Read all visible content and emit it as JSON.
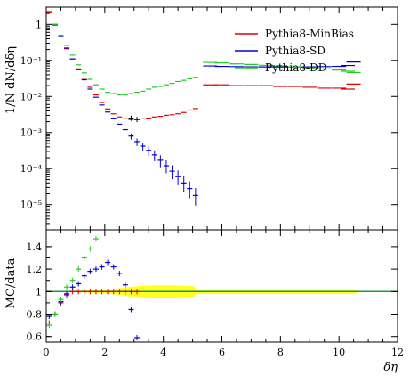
{
  "chart_data": [
    {
      "type": "scatter",
      "panel": "main",
      "xlabel": "δη",
      "ylabel": "1/N dN/dδη",
      "xlim": [
        0,
        12
      ],
      "ylim": [
        2e-06,
        3
      ],
      "yscale": "log",
      "yticks": [
        {
          "v": 1,
          "label": "1"
        },
        {
          "v": 0.1,
          "label": "10⁻¹"
        },
        {
          "v": 0.01,
          "label": "10⁻²"
        },
        {
          "v": 0.001,
          "label": "10⁻³"
        },
        {
          "v": 0.0001,
          "label": "10⁻⁴"
        },
        {
          "v": 1e-05,
          "label": "10⁻⁵"
        }
      ],
      "legend_position": "top-right",
      "data": {
        "color": "#000000",
        "points": [
          {
            "x": 2.9,
            "y": 0.0025
          },
          {
            "x": 3.1,
            "y": 0.0023
          }
        ]
      },
      "series": [
        {
          "name": "Pythia8-MinBias",
          "color": "#e00000",
          "x": [
            0.1,
            0.3,
            0.5,
            0.7,
            0.9,
            1.1,
            1.3,
            1.5,
            1.7,
            1.9,
            2.1,
            2.3,
            2.5,
            2.7,
            2.9,
            3.1,
            3.3,
            3.5,
            3.7,
            3.9,
            4.1,
            4.3,
            4.5,
            4.7,
            4.9,
            5.1,
            5.6,
            6.0,
            6.5,
            7.0,
            7.5,
            8.0,
            8.5,
            9.0,
            9.5,
            10.0,
            10.3,
            10.5
          ],
          "y": [
            2.1,
            0.95,
            0.45,
            0.21,
            0.11,
            0.058,
            0.032,
            0.018,
            0.011,
            0.0068,
            0.0045,
            0.0033,
            0.0027,
            0.0024,
            0.0023,
            0.0023,
            0.0024,
            0.0025,
            0.0027,
            0.0028,
            0.003,
            0.0031,
            0.0033,
            0.0036,
            0.0042,
            0.0046,
            0.021,
            0.021,
            0.02,
            0.02,
            0.02,
            0.019,
            0.019,
            0.018,
            0.017,
            0.017,
            0.016,
            0.022
          ]
        },
        {
          "name": "Pythia8-SD",
          "color": "#0000d0",
          "x": [
            0.1,
            0.3,
            0.5,
            0.7,
            0.9,
            1.1,
            1.3,
            1.5,
            1.7,
            1.9,
            2.1,
            2.3,
            2.5,
            2.7,
            2.9,
            3.1,
            3.3,
            3.5,
            3.7,
            3.9,
            4.1,
            4.3,
            4.5,
            4.7,
            4.9,
            5.1,
            5.6,
            6.0,
            6.5,
            7.0,
            7.5,
            8.0,
            8.5,
            9.0,
            9.5,
            10.0,
            10.3,
            10.5
          ],
          "y": [
            2.3,
            1.0,
            0.46,
            0.22,
            0.11,
            0.055,
            0.029,
            0.016,
            0.0095,
            0.0058,
            0.0037,
            0.0025,
            0.0017,
            0.0012,
            0.0008,
            0.00056,
            0.00042,
            0.00032,
            0.00024,
            0.00017,
            0.00012,
            8.5e-05,
            6e-05,
            4e-05,
            2.8e-05,
            1.8e-05,
            0.07,
            0.068,
            0.067,
            0.066,
            0.066,
            0.066,
            0.066,
            0.066,
            0.067,
            0.068,
            0.072,
            0.09
          ]
        },
        {
          "name": "Pythia8-DD",
          "color": "#22cc22",
          "x": [
            0.1,
            0.3,
            0.5,
            0.7,
            0.9,
            1.1,
            1.3,
            1.5,
            1.7,
            1.9,
            2.1,
            2.3,
            2.5,
            2.7,
            2.9,
            3.1,
            3.3,
            3.5,
            3.7,
            3.9,
            4.1,
            4.3,
            4.5,
            4.7,
            4.9,
            5.1,
            5.6,
            6.0,
            6.5,
            7.0,
            7.5,
            8.0,
            8.5,
            9.0,
            9.5,
            10.0,
            10.3,
            10.5
          ],
          "y": [
            2.3,
            1.0,
            0.5,
            0.26,
            0.14,
            0.075,
            0.045,
            0.03,
            0.021,
            0.016,
            0.013,
            0.012,
            0.011,
            0.011,
            0.012,
            0.013,
            0.014,
            0.016,
            0.018,
            0.019,
            0.021,
            0.023,
            0.026,
            0.028,
            0.031,
            0.034,
            0.088,
            0.085,
            0.08,
            0.077,
            0.073,
            0.07,
            0.066,
            0.062,
            0.058,
            0.054,
            0.05,
            0.046
          ]
        }
      ]
    },
    {
      "type": "scatter",
      "panel": "ratio",
      "xlabel": "δη",
      "ylabel": "MC/data",
      "xlim": [
        0,
        12
      ],
      "ylim": [
        0.55,
        1.55
      ],
      "xticks": [
        "0",
        "2",
        "4",
        "6",
        "8",
        "10",
        "12"
      ],
      "yticks": [
        "0.6",
        "0.8",
        "1",
        "1.2",
        "1.4"
      ],
      "uncertainty_band": {
        "color": "#ffff22",
        "x": [
          0.2,
          0.6,
          1.0,
          1.4,
          1.8,
          2.2,
          2.5,
          2.8,
          3.2,
          3.6,
          4.0,
          4.4,
          4.8,
          5.0,
          5.15,
          10.6
        ],
        "halfwidth": [
          0.003,
          0.004,
          0.006,
          0.01,
          0.015,
          0.02,
          0.03,
          0.04,
          0.05,
          0.055,
          0.055,
          0.055,
          0.05,
          0.05,
          0.02,
          0.02
        ]
      },
      "series": [
        {
          "name": "Pythia8-MinBias",
          "color": "#e00000",
          "x": [
            0.1,
            0.3,
            0.5,
            0.7,
            0.9,
            1.1,
            1.3,
            1.5,
            1.7,
            1.9,
            2.1,
            2.3,
            2.5,
            2.7,
            2.9,
            3.1
          ],
          "y": [
            0.72,
            0.8,
            0.9,
            0.97,
            1.0,
            1.0,
            1.0,
            1.0,
            1.0,
            1.0,
            1.0,
            1.0,
            1.0,
            1.0,
            1.0,
            1.0
          ]
        },
        {
          "name": "Pythia8-SD",
          "color": "#0000d0",
          "x": [
            0.1,
            0.3,
            0.5,
            0.7,
            0.9,
            1.1,
            1.3,
            1.5,
            1.7,
            1.9,
            2.1,
            2.3,
            2.5,
            2.7,
            2.9,
            3.1
          ],
          "y": [
            0.78,
            0.8,
            0.91,
            0.98,
            1.04,
            1.07,
            1.14,
            1.18,
            1.2,
            1.22,
            1.26,
            1.22,
            1.16,
            1.06,
            0.84,
            0.59
          ]
        },
        {
          "name": "Pythia8-DD",
          "color": "#22cc22",
          "x": [
            0.1,
            0.3,
            0.5,
            0.7,
            0.9,
            1.1,
            1.3,
            1.5,
            1.7
          ],
          "y": [
            0.7,
            0.8,
            0.93,
            1.04,
            1.1,
            1.2,
            1.3,
            1.38,
            1.47
          ]
        }
      ]
    }
  ]
}
